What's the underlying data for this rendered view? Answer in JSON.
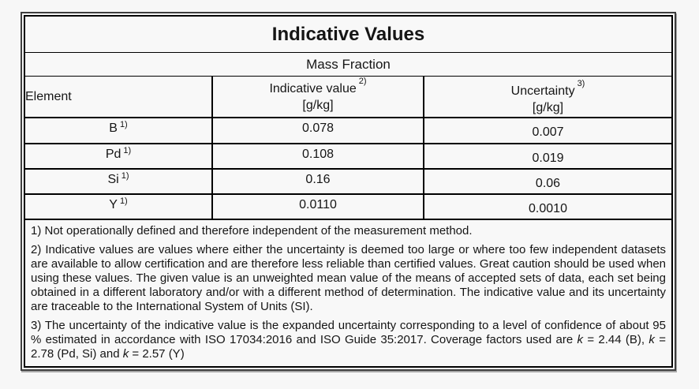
{
  "title": "Indicative Values",
  "subtitle": "Mass Fraction",
  "table": {
    "headers": {
      "element": "Element",
      "indicative_value": {
        "label": "Indicative value",
        "sup": "2)",
        "unit": "[g/kg]"
      },
      "uncertainty": {
        "label": "Uncertainty",
        "sup": "3)",
        "unit": "[g/kg]"
      }
    },
    "rows": [
      {
        "element": "B",
        "sup": "1)",
        "indicative_value": "0.078",
        "uncertainty": "0.007"
      },
      {
        "element": "Pd",
        "sup": "1)",
        "indicative_value": "0.108",
        "uncertainty": "0.019"
      },
      {
        "element": "Si",
        "sup": "1)",
        "indicative_value": "0.16",
        "uncertainty": "0.06"
      },
      {
        "element": "Y",
        "sup": "1)",
        "indicative_value": "0.0110",
        "uncertainty": "0.0010"
      }
    ]
  },
  "footnotes": {
    "note1": "1) Not operationally defined and therefore independent of the measurement method.",
    "note2": "2) Indicative values are values where either the uncertainty is deemed too large or where too few independent datasets are available to allow certification and are therefore less reliable than certified values. Great caution should be used when using these values. The given value is an unweighted mean value of the means of accepted sets of data, each set being obtained in a different laboratory and/or with a different method of determination. The indicative value and its uncertainty are traceable to the International System of Units (SI).",
    "note3": {
      "lead": "3) The uncertainty of the indicative value is the expanded uncertainty corresponding to a level of confidence of about 95 % estimated in accordance with ISO 17034:2016 and ISO Guide 35:2017. Coverage factors used are ",
      "k1": "k",
      "seg1": " = 2.44 (B), ",
      "k2": "k",
      "seg2": " = 2.78 (Pd, Si) and ",
      "k3": "k",
      "seg3": " = 2.57 (Y)"
    }
  },
  "colors": {
    "page_background": "#f7f7f7",
    "border": "#000000",
    "outer_frame": "#3f3f3f",
    "text": "#151515"
  }
}
